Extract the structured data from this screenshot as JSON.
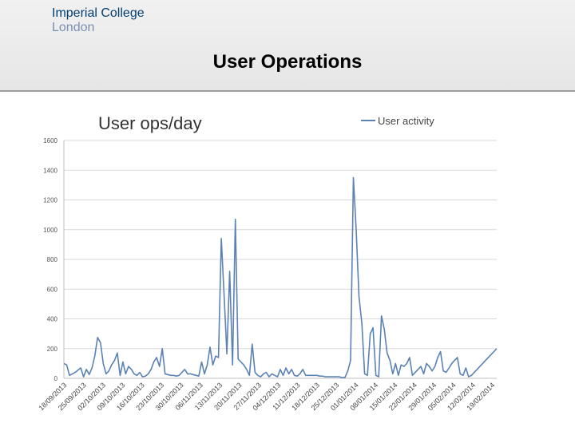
{
  "header": {
    "logo_line1": "Imperial College",
    "logo_line2": "London",
    "title": "User Operations"
  },
  "colors": {
    "series": "#5b82b5",
    "grid": "#d9d9d9",
    "logo": "#003e74"
  },
  "chart_data": {
    "type": "line",
    "title": "User ops/day",
    "xlabel": "",
    "ylabel": "",
    "ylim": [
      0,
      1600
    ],
    "yticks": [
      0,
      200,
      400,
      600,
      800,
      1000,
      1200,
      1400,
      1600
    ],
    "grid": true,
    "legend_position": "top-right",
    "xtick_labels": [
      "18/09/2013",
      "25/09/2013",
      "02/10/2013",
      "09/10/2013",
      "16/10/2013",
      "23/10/2013",
      "30/10/2013",
      "06/11/2013",
      "13/11/2013",
      "20/11/2013",
      "27/11/2013",
      "04/12/2013",
      "11/12/2013",
      "18/12/2013",
      "25/12/2013",
      "01/01/2014",
      "08/01/2014",
      "15/01/2014",
      "22/01/2014",
      "29/01/2014",
      "05/02/2014",
      "12/02/2014",
      "19/02/2014"
    ],
    "series": [
      {
        "name": "User activity",
        "color": "#5b82b5",
        "x": [
          0,
          1,
          2,
          3,
          4,
          5,
          6,
          7,
          8,
          9,
          10,
          11,
          12,
          13,
          14,
          15,
          16,
          17,
          18,
          19,
          20,
          21,
          22,
          23,
          24,
          25,
          26,
          27,
          28,
          29,
          30,
          31,
          32,
          33,
          34,
          35,
          36,
          37,
          38,
          39,
          40,
          41,
          42,
          43,
          44,
          45,
          46,
          47,
          48,
          49,
          50,
          51,
          52,
          53,
          54,
          55,
          56,
          57,
          58,
          59,
          60,
          61,
          62,
          63,
          64,
          65,
          66,
          67,
          68,
          69,
          70,
          71,
          72,
          73,
          74,
          75,
          76,
          77,
          78,
          79,
          80,
          81,
          82,
          83,
          84,
          85,
          86,
          87,
          88,
          89,
          90,
          91,
          92,
          93,
          94,
          95,
          96,
          97,
          98,
          99,
          100,
          101,
          102,
          103,
          104,
          105,
          106,
          107,
          108,
          109,
          110,
          111,
          112,
          113,
          114,
          115,
          116,
          117,
          118,
          119,
          120,
          121,
          122,
          123,
          124,
          125,
          126,
          127,
          128,
          129,
          130,
          131,
          132,
          133,
          134,
          135,
          136,
          137,
          138,
          139,
          140,
          141,
          142,
          143,
          144,
          145,
          146,
          147,
          148,
          149,
          150,
          151,
          152,
          153,
          154
        ],
        "y": [
          100,
          90,
          20,
          30,
          40,
          55,
          70,
          10,
          60,
          25,
          70,
          150,
          275,
          240,
          100,
          30,
          50,
          90,
          120,
          170,
          20,
          110,
          30,
          80,
          60,
          30,
          20,
          40,
          10,
          15,
          30,
          60,
          110,
          140,
          80,
          200,
          30,
          25,
          20,
          20,
          15,
          20,
          40,
          60,
          30,
          30,
          25,
          20,
          15,
          110,
          30,
          90,
          210,
          90,
          150,
          140,
          940,
          560,
          165,
          720,
          90,
          1070,
          130,
          110,
          90,
          60,
          20,
          230,
          40,
          20,
          10,
          30,
          40,
          10,
          30,
          20,
          10,
          60,
          20,
          70,
          30,
          60,
          20,
          15,
          30,
          60,
          20,
          20,
          20,
          20,
          20,
          15,
          15,
          10,
          10,
          10,
          10,
          10,
          10,
          5,
          5,
          50,
          120,
          1350,
          1000,
          550,
          370,
          30,
          20,
          300,
          340,
          20,
          10,
          420,
          330,
          170,
          120,
          30,
          100,
          20,
          90,
          80,
          100,
          140,
          20,
          40,
          60,
          80,
          30,
          100,
          80,
          50,
          80,
          140,
          180,
          50,
          40,
          70,
          100,
          120,
          140,
          30,
          20,
          70,
          10,
          20,
          40,
          60,
          80,
          100,
          120,
          140,
          160,
          180,
          200
        ],
        "y_note_unused": []
      }
    ]
  }
}
